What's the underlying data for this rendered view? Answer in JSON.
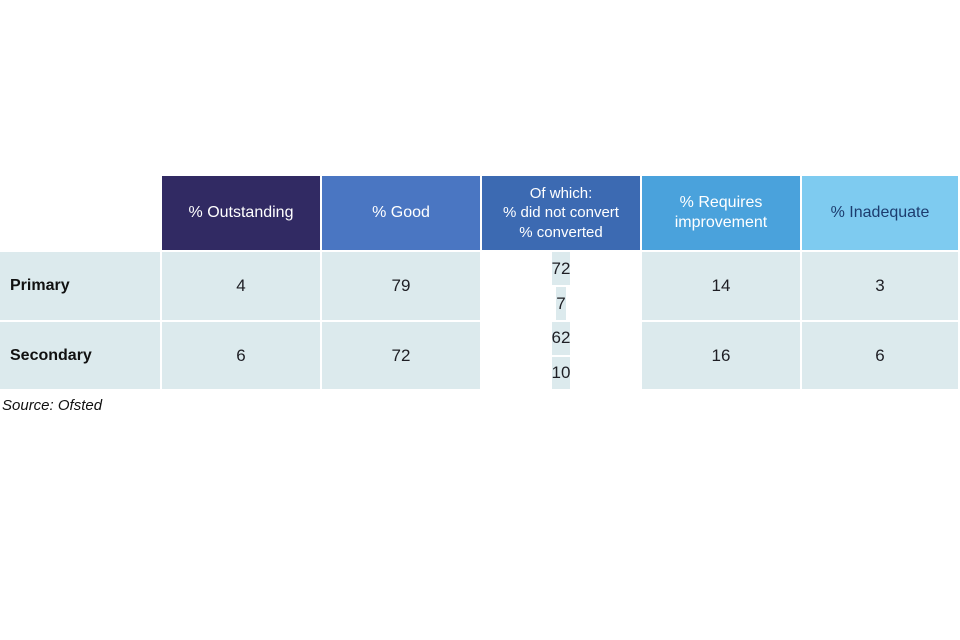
{
  "table": {
    "headers": {
      "outstanding": "% Outstanding",
      "good": "% Good",
      "of_which_line1": "Of which:",
      "of_which_line2": "% did not convert",
      "of_which_line3": "% converted",
      "requires_improvement": "% Requires improvement",
      "inadequate": "% Inadequate"
    },
    "rows": [
      {
        "label": "Primary",
        "outstanding": "4",
        "good": "79",
        "did_not_convert": "72",
        "converted": "7",
        "requires_improvement": "14",
        "inadequate": "3"
      },
      {
        "label": "Secondary",
        "outstanding": "6",
        "good": "72",
        "did_not_convert": "62",
        "converted": "10",
        "requires_improvement": "16",
        "inadequate": "6"
      }
    ]
  },
  "source": "Source: Ofsted",
  "colors": {
    "header_outstanding_bg": "#312a63",
    "header_good_bg": "#4a76c2",
    "header_of_which_bg": "#3c6ab2",
    "header_requires_improvement_bg": "#4aa2dc",
    "header_inadequate_bg": "#7ecbf0",
    "header_inadequate_text": "#1c3c6e",
    "header_text": "#ffffff",
    "data_cell_bg": "#dceaed",
    "data_text": "#1e1e24"
  },
  "chart_data": {
    "type": "table",
    "title": "",
    "columns": [
      "",
      "% Outstanding",
      "% Good",
      "Of which: % did not convert / % converted",
      "% Requires improvement",
      "% Inadequate"
    ],
    "rows": [
      {
        "label": "Primary",
        "outstanding": 4,
        "good": 79,
        "good_did_not_convert": 72,
        "good_converted": 7,
        "requires_improvement": 14,
        "inadequate": 3
      },
      {
        "label": "Secondary",
        "outstanding": 6,
        "good": 72,
        "good_did_not_convert": 62,
        "good_converted": 10,
        "requires_improvement": 16,
        "inadequate": 6
      }
    ],
    "source": "Source: Ofsted",
    "layout": "split cell in 'Of which' column stacks % did not convert above % converted per row"
  }
}
